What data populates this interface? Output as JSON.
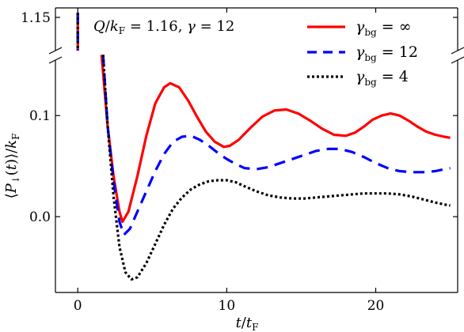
{
  "chart_data": {
    "type": "line",
    "annotation": "Q/k_F = 1.16, γ = 12",
    "xlabel": "t/t_F",
    "ylabel": "⟨P↓(t)⟩/k_F",
    "xlim": [
      -1.5,
      25.5
    ],
    "ylim": [
      -0.075,
      0.158
    ],
    "x_ticks": [
      0,
      10,
      20
    ],
    "x_tick_labels": [
      "0",
      "10",
      "20"
    ],
    "y_ticks": [
      0.0,
      0.1
    ],
    "y_tick_labels": [
      "0.0",
      "0.1"
    ],
    "broken_axis": {
      "upper_tick": 1.15,
      "upper_tick_label": "1.15"
    },
    "initial_value": 1.16,
    "legend_position": "top-right",
    "grid": false,
    "series": [
      {
        "name": "γ_bg = ∞",
        "color": "#ff0000",
        "dash": "solid",
        "x": [
          1.6,
          2.0,
          2.4,
          2.8,
          3.0,
          3.4,
          4.0,
          4.6,
          5.2,
          5.8,
          6.2,
          6.8,
          7.4,
          8.0,
          8.6,
          9.2,
          9.8,
          10.2,
          10.8,
          11.6,
          12.4,
          13.2,
          14.0,
          14.8,
          15.6,
          16.4,
          17.2,
          18.0,
          18.6,
          19.2,
          19.8,
          20.4,
          21.0,
          21.6,
          22.2,
          22.8,
          23.4,
          24.0,
          24.6,
          25.0
        ],
        "y": [
          0.16,
          0.09,
          0.04,
          0.005,
          -0.005,
          0.005,
          0.04,
          0.08,
          0.112,
          0.128,
          0.132,
          0.128,
          0.115,
          0.099,
          0.084,
          0.074,
          0.069,
          0.07,
          0.076,
          0.088,
          0.099,
          0.105,
          0.106,
          0.102,
          0.095,
          0.087,
          0.081,
          0.08,
          0.083,
          0.089,
          0.096,
          0.1,
          0.102,
          0.1,
          0.095,
          0.089,
          0.084,
          0.081,
          0.079,
          0.078
        ]
      },
      {
        "name": "γ_bg = 12",
        "color": "#0000ff",
        "dash": "dashed",
        "x": [
          1.7,
          2.0,
          2.4,
          2.8,
          3.1,
          3.5,
          4.0,
          4.6,
          5.2,
          5.8,
          6.4,
          7.0,
          7.6,
          8.2,
          8.8,
          9.4,
          10.0,
          10.6,
          11.2,
          12.0,
          12.8,
          13.6,
          14.4,
          15.2,
          16.0,
          16.8,
          17.6,
          18.4,
          19.2,
          20.0,
          20.8,
          21.6,
          22.4,
          23.2,
          24.0,
          24.6,
          25.0
        ],
        "y": [
          0.16,
          0.09,
          0.035,
          -0.005,
          -0.018,
          -0.012,
          0.005,
          0.025,
          0.045,
          0.062,
          0.074,
          0.079,
          0.08,
          0.076,
          0.07,
          0.063,
          0.057,
          0.052,
          0.048,
          0.047,
          0.049,
          0.053,
          0.057,
          0.061,
          0.065,
          0.067,
          0.067,
          0.064,
          0.059,
          0.053,
          0.048,
          0.045,
          0.044,
          0.044,
          0.045,
          0.047,
          0.048
        ]
      },
      {
        "name": "γ_bg = 4",
        "color": "#000000",
        "dash": "dotted",
        "x": [
          1.7,
          2.0,
          2.4,
          2.8,
          3.2,
          3.6,
          4.0,
          4.6,
          5.2,
          5.8,
          6.4,
          7.0,
          7.6,
          8.2,
          8.8,
          9.4,
          10.0,
          10.6,
          11.2,
          12.0,
          12.8,
          13.6,
          14.4,
          15.2,
          16.0,
          16.8,
          17.6,
          18.4,
          19.2,
          20.0,
          20.8,
          21.6,
          22.4,
          23.2,
          24.0,
          24.6,
          25.0
        ],
        "y": [
          0.16,
          0.09,
          0.02,
          -0.03,
          -0.055,
          -0.062,
          -0.06,
          -0.046,
          -0.027,
          -0.008,
          0.008,
          0.019,
          0.027,
          0.032,
          0.035,
          0.036,
          0.036,
          0.034,
          0.03,
          0.025,
          0.021,
          0.019,
          0.018,
          0.018,
          0.019,
          0.02,
          0.021,
          0.022,
          0.023,
          0.023,
          0.023,
          0.022,
          0.02,
          0.017,
          0.014,
          0.012,
          0.011
        ]
      }
    ]
  }
}
